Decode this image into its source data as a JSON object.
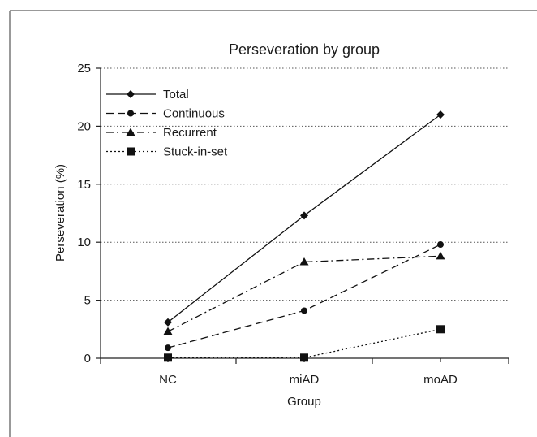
{
  "chart_data": {
    "type": "line",
    "title": "Perseveration by group",
    "xlabel": "Group",
    "ylabel": "Perseveration (%)",
    "categories": [
      "NC",
      "miAD",
      "moAD"
    ],
    "ylim": [
      0,
      25
    ],
    "yticks": [
      0,
      5,
      10,
      15,
      20,
      25
    ],
    "grid": "horizontal dotted",
    "legend_position": "top-left",
    "series": [
      {
        "name": "Total",
        "values": [
          3.1,
          12.3,
          21.0
        ],
        "dash": "solid",
        "marker": "diamond"
      },
      {
        "name": "Continuous",
        "values": [
          0.9,
          4.1,
          9.8
        ],
        "dash": "dashed",
        "marker": "circle"
      },
      {
        "name": "Recurrent",
        "values": [
          2.3,
          8.3,
          8.8
        ],
        "dash": "dashdot",
        "marker": "triangle"
      },
      {
        "name": "Stuck-in-set",
        "values": [
          0.05,
          0.05,
          2.5
        ],
        "dash": "dotted",
        "marker": "square"
      }
    ]
  }
}
